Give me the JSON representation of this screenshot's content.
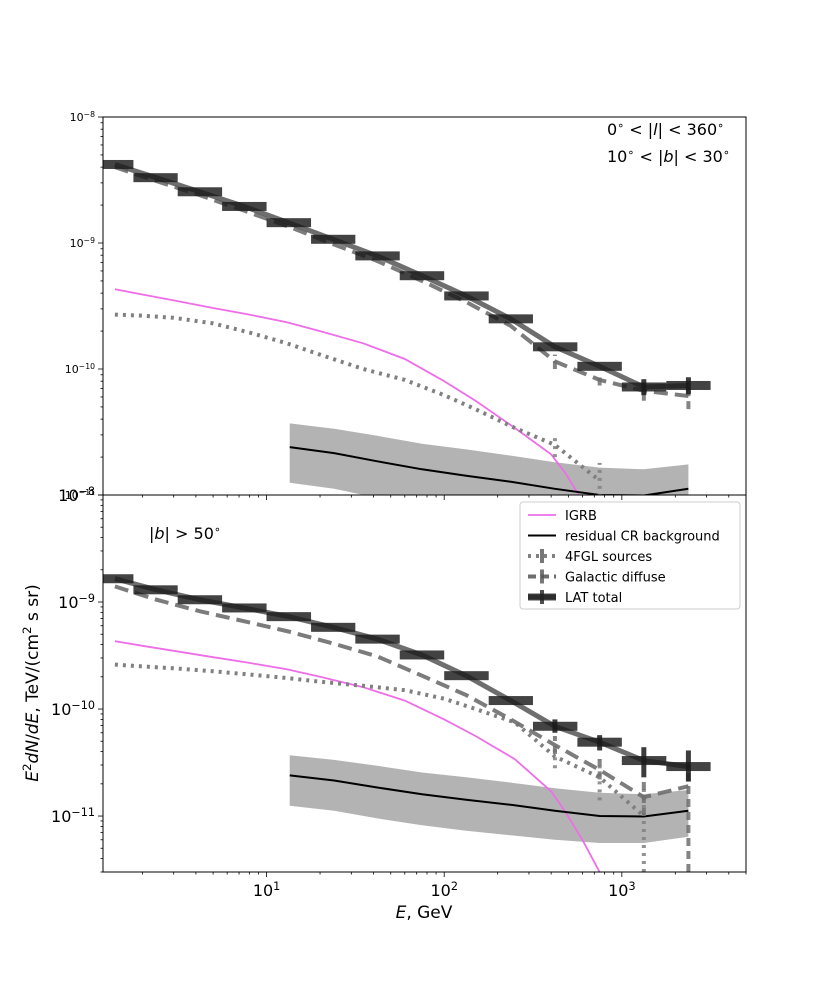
{
  "chart_data": {
    "type": "line",
    "x_unit_label": "E, GeV",
    "y_unit_label": "E^2 dN/dE, TeV/(cm^2 s sr)",
    "x_scale": "log",
    "y_scale": "log",
    "xlim": [
      1.2,
      5000
    ],
    "legend": {
      "placement": "upper-right of bottom panel",
      "entries": [
        "IGRB",
        "residual CR background",
        "4FGL sources",
        "Galactic diffuse",
        "LAT total"
      ]
    },
    "colors": {
      "IGRB": "#ee6ee8",
      "residual CR background": "#000000",
      "residual CR band": "#b3b3b3",
      "4FGL sources": "#808080",
      "Galactic diffuse": "#6e6e6e",
      "LAT total": "#555555",
      "LAT total errorbar": "#1a1a1a"
    },
    "panels": [
      {
        "id": "top",
        "annotation_lines": [
          "0° < |l| < 360°",
          "10° < |b| < 30°"
        ],
        "ylim": [
          1e-11,
          1e-08
        ],
        "ytick_labels": [
          {
            "value": 1e-08,
            "exp": "−8"
          },
          {
            "value": 1e-09,
            "exp": "−9"
          },
          {
            "value": 1e-10,
            "exp": "−10"
          },
          {
            "value": 1e-11,
            "exp": "−11"
          }
        ],
        "series": [
          {
            "name": "IGRB",
            "x": [
              1.4,
              2,
              3,
              5,
              8,
              13,
              20,
              35,
              60,
              100,
              150,
              250,
              400,
              480,
              600,
              750
            ],
            "y": [
              4.3e-10,
              3.9e-10,
              3.5e-10,
              3.05e-10,
              2.7e-10,
              2.35e-10,
              2e-10,
              1.6e-10,
              1.2e-10,
              8e-11,
              5.6e-11,
              3.4e-11,
              2.1e-11,
              1.5e-11,
              9e-12,
              6e-12
            ]
          },
          {
            "name": "residual CR background",
            "x": [
              13.5,
              24,
              42,
              75,
              133,
              240,
              420,
              750,
              1330,
              2370
            ],
            "y": [
              2.4e-11,
              2.15e-11,
              1.85e-11,
              1.6e-11,
              1.42e-11,
              1.27e-11,
              1.12e-11,
              1e-11,
              9.9e-12,
              1.12e-11
            ],
            "band_low": [
              1.25e-11,
              1.12e-11,
              9.5e-12,
              8.2e-12,
              7.3e-12,
              6.6e-12,
              6e-12,
              5.6e-12,
              5.6e-12,
              6.4e-12
            ],
            "band_high": [
              3.7e-11,
              3.35e-11,
              2.95e-11,
              2.55e-11,
              2.3e-11,
              2.05e-11,
              1.82e-11,
              1.65e-11,
              1.6e-11,
              1.75e-11
            ]
          },
          {
            "name": "4FGL sources",
            "x": [
              1.4,
              2,
              3,
              5,
              8,
              13,
              20,
              35,
              60,
              100,
              150,
              250,
              420,
              750
            ],
            "y": [
              2.7e-10,
              2.65e-10,
              2.55e-10,
              2.3e-10,
              1.95e-10,
              1.6e-10,
              1.3e-10,
              1e-10,
              8.2e-11,
              6.2e-11,
              4.8e-11,
              3.4e-11,
              2.5e-11,
              1.3e-11
            ],
            "err_lo": [
              null,
              null,
              null,
              null,
              null,
              null,
              null,
              null,
              null,
              null,
              null,
              null,
              2e-11,
              3e-12
            ],
            "err_hi": [
              null,
              null,
              null,
              null,
              null,
              null,
              null,
              null,
              null,
              null,
              null,
              null,
              3e-11,
              1.8e-11
            ]
          },
          {
            "name": "Galactic diffuse",
            "x": [
              1.4,
              2.4,
              4.2,
              7.5,
              13.3,
              23.7,
              42,
              75,
              133,
              237,
              420,
              750,
              1330,
              2370
            ],
            "y": [
              4e-09,
              3.1e-09,
              2.4e-09,
              1.8e-09,
              1.35e-09,
              9.8e-10,
              7.2e-10,
              5e-10,
              3.4e-10,
              2.2e-10,
              1.15e-10,
              8.2e-11,
              6.7e-11,
              6.1e-11
            ],
            "err_lo": [
              null,
              null,
              null,
              null,
              null,
              null,
              null,
              null,
              null,
              null,
              1e-10,
              7.4e-11,
              5.6e-11,
              4.8e-11
            ],
            "err_hi": [
              null,
              null,
              null,
              null,
              null,
              null,
              null,
              null,
              null,
              null,
              1.3e-10,
              9e-11,
              7.8e-11,
              7.4e-11
            ]
          },
          {
            "name": "LAT total",
            "x": [
              1.4,
              2.4,
              4.2,
              7.5,
              13.3,
              23.7,
              42,
              75,
              133,
              237,
              420,
              750,
              1330,
              2370
            ],
            "y": [
              4.2e-09,
              3.3e-09,
              2.55e-09,
              1.95e-09,
              1.45e-09,
              1.07e-09,
              7.9e-10,
              5.5e-10,
              3.8e-10,
              2.5e-10,
              1.5e-10,
              1.05e-10,
              7.2e-11,
              7.4e-11
            ],
            "x_err_lo": [
              1.2,
              1.78,
              3.16,
              5.62,
              10,
              17.8,
              31.6,
              56.2,
              100,
              178,
              316,
              562,
              1000,
              1780
            ],
            "x_err_hi": [
              1.78,
              3.16,
              5.62,
              10,
              17.8,
              31.6,
              56.2,
              100,
              178,
              316,
              562,
              1000,
              1780,
              3160
            ],
            "err_lo": [
              null,
              null,
              null,
              null,
              null,
              null,
              null,
              null,
              null,
              null,
              null,
              null,
              6.2e-11,
              6.3e-11
            ],
            "err_hi": [
              null,
              null,
              null,
              null,
              null,
              null,
              null,
              null,
              null,
              null,
              null,
              null,
              8.3e-11,
              8.6e-11
            ]
          }
        ]
      },
      {
        "id": "bottom",
        "annotation_lines": [
          "|b| > 50°"
        ],
        "ylim": [
          3e-12,
          1e-08
        ],
        "ytick_labels": [
          {
            "value": 1e-08,
            "exp": "−8"
          },
          {
            "value": 1e-09,
            "exp": "−9"
          },
          {
            "value": 1e-10,
            "exp": "−10"
          },
          {
            "value": 1e-11,
            "exp": "−11"
          }
        ],
        "series": [
          {
            "name": "IGRB",
            "x": [
              1.4,
              2,
              3,
              5,
              8,
              13,
              20,
              35,
              60,
              100,
              150,
              250,
              400,
              480,
              600,
              750
            ],
            "y": [
              4.3e-10,
              3.9e-10,
              3.5e-10,
              3.05e-10,
              2.7e-10,
              2.35e-10,
              2e-10,
              1.6e-10,
              1.2e-10,
              8e-11,
              5.6e-11,
              3.4e-11,
              1.7e-11,
              1.1e-11,
              6e-12,
              3e-12
            ]
          },
          {
            "name": "residual CR background",
            "x": [
              13.5,
              24,
              42,
              75,
              133,
              240,
              420,
              750,
              1330,
              2370
            ],
            "y": [
              2.4e-11,
              2.15e-11,
              1.85e-11,
              1.6e-11,
              1.42e-11,
              1.27e-11,
              1.12e-11,
              1e-11,
              9.9e-12,
              1.12e-11
            ],
            "band_low": [
              1.25e-11,
              1.12e-11,
              9.5e-12,
              8.2e-12,
              7.3e-12,
              6.6e-12,
              6e-12,
              5.6e-12,
              5.6e-12,
              6.4e-12
            ],
            "band_high": [
              3.7e-11,
              3.35e-11,
              2.95e-11,
              2.55e-11,
              2.3e-11,
              2.05e-11,
              1.82e-11,
              1.65e-11,
              1.6e-11,
              1.75e-11
            ]
          },
          {
            "name": "4FGL sources",
            "x": [
              1.4,
              2,
              3,
              5,
              8,
              13,
              20,
              35,
              60,
              100,
              150,
              250,
              420,
              750,
              1330
            ],
            "y": [
              2.6e-10,
              2.5e-10,
              2.4e-10,
              2.25e-10,
              2.1e-10,
              1.95e-10,
              1.8e-10,
              1.65e-10,
              1.5e-10,
              1.25e-10,
              1e-10,
              7.5e-11,
              3.6e-11,
              2.3e-11,
              1e-11
            ],
            "err_lo": [
              null,
              null,
              null,
              null,
              null,
              null,
              null,
              null,
              null,
              null,
              null,
              null,
              2.8e-11,
              1.4e-11,
              3e-12
            ],
            "err_hi": [
              null,
              null,
              null,
              null,
              null,
              null,
              null,
              null,
              null,
              null,
              null,
              null,
              4.5e-11,
              3.4e-11,
              1.8e-11
            ]
          },
          {
            "name": "Galactic diffuse",
            "x": [
              1.4,
              2.4,
              4.2,
              7.5,
              13.3,
              23.7,
              42,
              75,
              133,
              237,
              420,
              750,
              1330,
              2370
            ],
            "y": [
              1.4e-09,
              1.05e-09,
              8.2e-10,
              6.6e-10,
              5.3e-10,
              4.1e-10,
              3.1e-10,
              2.05e-10,
              1.35e-10,
              8e-11,
              4.6e-11,
              2.7e-11,
              1.5e-11,
              1.9e-11
            ],
            "err_lo": [
              null,
              null,
              null,
              null,
              null,
              null,
              null,
              null,
              null,
              null,
              3.8e-11,
              2.2e-11,
              1e-11,
              3e-12
            ],
            "err_hi": [
              null,
              null,
              null,
              null,
              null,
              null,
              null,
              null,
              null,
              null,
              5.6e-11,
              3.4e-11,
              2.2e-11,
              3e-11
            ]
          },
          {
            "name": "LAT total",
            "x": [
              1.4,
              2.4,
              4.2,
              7.5,
              13.3,
              23.7,
              42,
              75,
              133,
              237,
              420,
              750,
              1330,
              2370
            ],
            "y": [
              1.65e-09,
              1.3e-09,
              1.05e-09,
              8.8e-10,
              7.3e-10,
              5.8e-10,
              4.5e-10,
              3.2e-10,
              2.05e-10,
              1.2e-10,
              6.9e-11,
              4.9e-11,
              3.3e-11,
              2.9e-11
            ],
            "x_err_lo": [
              1.2,
              1.78,
              3.16,
              5.62,
              10,
              17.8,
              31.6,
              56.2,
              100,
              178,
              316,
              562,
              1000,
              1780
            ],
            "x_err_hi": [
              1.78,
              3.16,
              5.62,
              10,
              17.8,
              31.6,
              56.2,
              100,
              178,
              316,
              562,
              1000,
              1780,
              3160
            ],
            "err_lo": [
              null,
              null,
              null,
              null,
              null,
              null,
              null,
              null,
              null,
              null,
              6e-11,
              4.1e-11,
              2.3e-11,
              2.1e-11
            ],
            "err_hi": [
              null,
              null,
              null,
              null,
              null,
              null,
              null,
              null,
              null,
              null,
              8e-11,
              5.7e-11,
              4.4e-11,
              4.1e-11
            ]
          }
        ]
      }
    ],
    "bottom_ytick_labels_text": [
      "10",
      "10",
      "10"
    ],
    "top_ytick_label_base": "10",
    "bottom_top_label": "10",
    "bottom_top_label_exp": "−8",
    "xtick_labels": [
      {
        "value": 10,
        "base": "10",
        "exp": "1"
      },
      {
        "value": 100,
        "base": "10",
        "exp": "2"
      },
      {
        "value": 1000,
        "base": "10",
        "exp": "3"
      }
    ]
  }
}
